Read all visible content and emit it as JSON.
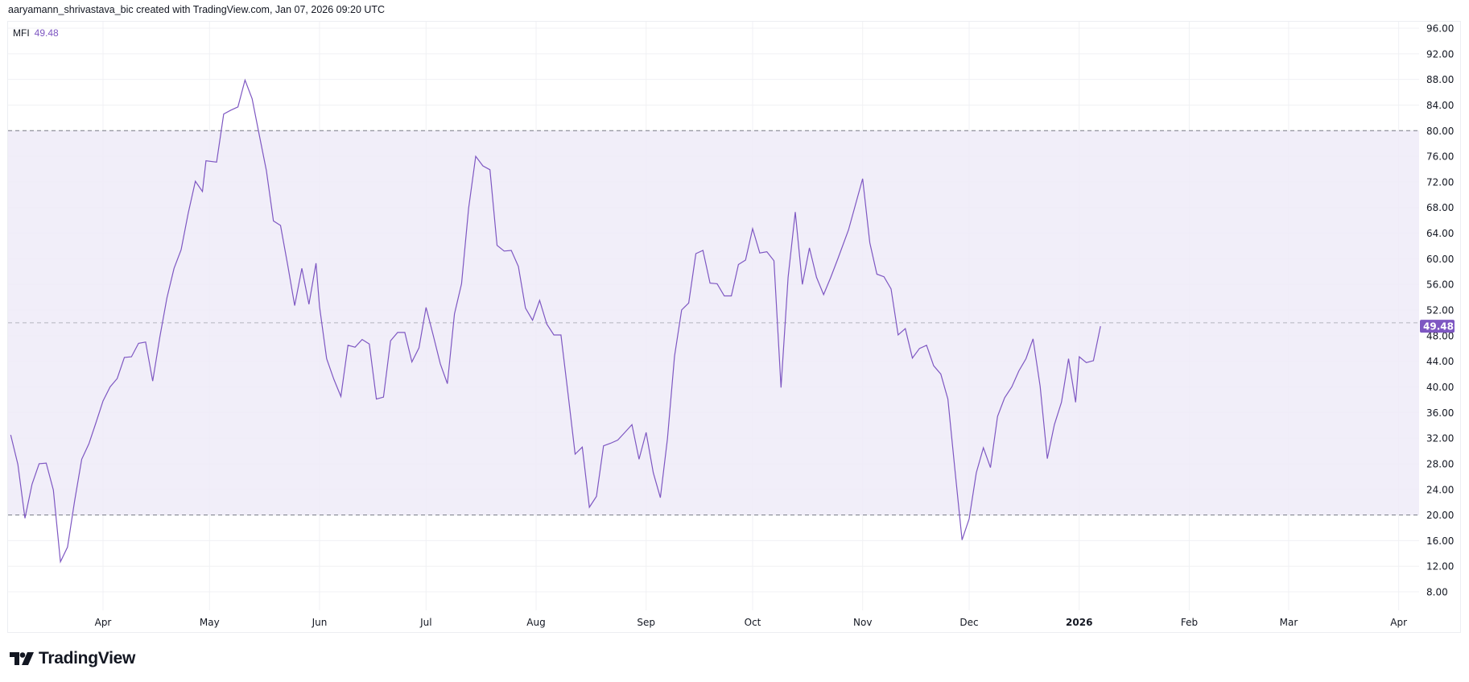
{
  "header": {
    "title": "aaryamann_shrivastava_bic created with TradingView.com, Jan 07, 2026 09:20 UTC"
  },
  "legend": {
    "name": "MFI",
    "value": "49.48"
  },
  "brand": {
    "name": "TradingView"
  },
  "colors": {
    "line": "#7E57C2",
    "band_fill": "#EFEBF8",
    "band_line": "#787B86",
    "grid": "#F0F1F4",
    "label_bg": "#7E57C2"
  },
  "chart_data": {
    "type": "line",
    "title": "",
    "xlabel": "",
    "ylabel": "",
    "ylim": [
      4,
      98
    ],
    "grid": true,
    "last_value_label": "49.48",
    "bands": {
      "upper": 80,
      "middle": 50,
      "lower": 20
    },
    "yticks": [
      "96.00",
      "92.00",
      "88.00",
      "84.00",
      "80.00",
      "76.00",
      "72.00",
      "68.00",
      "64.00",
      "60.00",
      "56.00",
      "52.00",
      "48.00",
      "44.00",
      "40.00",
      "36.00",
      "32.00",
      "28.00",
      "24.00",
      "20.00",
      "16.00",
      "12.00",
      "8.00"
    ],
    "xticks": [
      {
        "label": "Apr",
        "date": "2025-04-01"
      },
      {
        "label": "May",
        "date": "2025-05-01"
      },
      {
        "label": "Jun",
        "date": "2025-06-01"
      },
      {
        "label": "Jul",
        "date": "2025-07-01"
      },
      {
        "label": "Aug",
        "date": "2025-08-01"
      },
      {
        "label": "Sep",
        "date": "2025-09-01"
      },
      {
        "label": "Oct",
        "date": "2025-10-01"
      },
      {
        "label": "Nov",
        "date": "2025-11-01"
      },
      {
        "label": "Dec",
        "date": "2025-12-01"
      },
      {
        "label": "2026",
        "date": "2026-01-01",
        "bold": true
      },
      {
        "label": "Feb",
        "date": "2026-02-01"
      },
      {
        "label": "Mar",
        "date": "2026-03-01"
      },
      {
        "label": "Apr",
        "date": "2026-04-01"
      }
    ],
    "series": [
      {
        "points": [
          [
            "2025-03-06",
            32.5
          ],
          [
            "2025-03-08",
            27.9
          ],
          [
            "2025-03-10",
            19.5
          ],
          [
            "2025-03-12",
            24.8
          ],
          [
            "2025-03-14",
            28.0
          ],
          [
            "2025-03-16",
            28.1
          ],
          [
            "2025-03-18",
            23.9
          ],
          [
            "2025-03-20",
            12.7
          ],
          [
            "2025-03-22",
            15.0
          ],
          [
            "2025-03-24",
            22.2
          ],
          [
            "2025-03-26",
            28.7
          ],
          [
            "2025-03-28",
            31.1
          ],
          [
            "2025-03-30",
            34.4
          ],
          [
            "2025-04-01",
            37.8
          ],
          [
            "2025-04-03",
            40.0
          ],
          [
            "2025-04-05",
            41.3
          ],
          [
            "2025-04-07",
            44.6
          ],
          [
            "2025-04-09",
            44.7
          ],
          [
            "2025-04-11",
            46.8
          ],
          [
            "2025-04-13",
            47.0
          ],
          [
            "2025-04-15",
            40.9
          ],
          [
            "2025-04-17",
            47.8
          ],
          [
            "2025-04-19",
            53.9
          ],
          [
            "2025-04-21",
            58.5
          ],
          [
            "2025-04-23",
            61.4
          ],
          [
            "2025-04-25",
            67.1
          ],
          [
            "2025-04-27",
            72.1
          ],
          [
            "2025-04-29",
            70.5
          ],
          [
            "2025-04-30",
            75.3
          ],
          [
            "2025-05-03",
            75.1
          ],
          [
            "2025-05-05",
            82.6
          ],
          [
            "2025-05-07",
            83.2
          ],
          [
            "2025-05-09",
            83.7
          ],
          [
            "2025-05-11",
            87.9
          ],
          [
            "2025-05-13",
            85.0
          ],
          [
            "2025-05-15",
            79.4
          ],
          [
            "2025-05-17",
            73.8
          ],
          [
            "2025-05-19",
            65.9
          ],
          [
            "2025-05-21",
            65.2
          ],
          [
            "2025-05-23",
            59.1
          ],
          [
            "2025-05-25",
            52.7
          ],
          [
            "2025-05-27",
            58.5
          ],
          [
            "2025-05-29",
            52.9
          ],
          [
            "2025-05-31",
            59.3
          ],
          [
            "2025-06-01",
            52.5
          ],
          [
            "2025-06-03",
            44.4
          ],
          [
            "2025-06-05",
            41.2
          ],
          [
            "2025-06-07",
            38.5
          ],
          [
            "2025-06-09",
            46.5
          ],
          [
            "2025-06-11",
            46.2
          ],
          [
            "2025-06-13",
            47.4
          ],
          [
            "2025-06-15",
            46.7
          ],
          [
            "2025-06-17",
            38.1
          ],
          [
            "2025-06-19",
            38.4
          ],
          [
            "2025-06-21",
            47.2
          ],
          [
            "2025-06-23",
            48.5
          ],
          [
            "2025-06-25",
            48.5
          ],
          [
            "2025-06-27",
            43.9
          ],
          [
            "2025-06-29",
            46.1
          ],
          [
            "2025-07-01",
            52.4
          ],
          [
            "2025-07-03",
            48.1
          ],
          [
            "2025-07-05",
            43.6
          ],
          [
            "2025-07-07",
            40.5
          ],
          [
            "2025-07-09",
            51.4
          ],
          [
            "2025-07-11",
            56.1
          ],
          [
            "2025-07-13",
            67.9
          ],
          [
            "2025-07-15",
            76.0
          ],
          [
            "2025-07-17",
            74.5
          ],
          [
            "2025-07-19",
            73.9
          ],
          [
            "2025-07-21",
            62.1
          ],
          [
            "2025-07-23",
            61.2
          ],
          [
            "2025-07-25",
            61.3
          ],
          [
            "2025-07-27",
            58.8
          ],
          [
            "2025-07-29",
            52.3
          ],
          [
            "2025-07-31",
            50.4
          ],
          [
            "2025-08-02",
            53.5
          ],
          [
            "2025-08-04",
            49.8
          ],
          [
            "2025-08-06",
            48.1
          ],
          [
            "2025-08-08",
            48.1
          ],
          [
            "2025-08-10",
            38.9
          ],
          [
            "2025-08-12",
            29.5
          ],
          [
            "2025-08-14",
            30.6
          ],
          [
            "2025-08-16",
            21.2
          ],
          [
            "2025-08-18",
            22.9
          ],
          [
            "2025-08-20",
            30.8
          ],
          [
            "2025-08-22",
            31.2
          ],
          [
            "2025-08-24",
            31.7
          ],
          [
            "2025-08-26",
            32.9
          ],
          [
            "2025-08-28",
            34.1
          ],
          [
            "2025-08-30",
            28.7
          ],
          [
            "2025-09-01",
            32.9
          ],
          [
            "2025-09-03",
            26.6
          ],
          [
            "2025-09-05",
            22.7
          ],
          [
            "2025-09-07",
            31.9
          ],
          [
            "2025-09-09",
            44.8
          ],
          [
            "2025-09-11",
            52.0
          ],
          [
            "2025-09-13",
            53.1
          ],
          [
            "2025-09-15",
            60.8
          ],
          [
            "2025-09-17",
            61.3
          ],
          [
            "2025-09-19",
            56.2
          ],
          [
            "2025-09-21",
            56.1
          ],
          [
            "2025-09-23",
            54.2
          ],
          [
            "2025-09-25",
            54.2
          ],
          [
            "2025-09-27",
            59.1
          ],
          [
            "2025-09-29",
            59.8
          ],
          [
            "2025-10-01",
            64.7
          ],
          [
            "2025-10-03",
            60.9
          ],
          [
            "2025-10-05",
            61.1
          ],
          [
            "2025-10-07",
            59.7
          ],
          [
            "2025-10-09",
            39.9
          ],
          [
            "2025-10-11",
            57.1
          ],
          [
            "2025-10-13",
            67.3
          ],
          [
            "2025-10-15",
            56.0
          ],
          [
            "2025-10-17",
            61.7
          ],
          [
            "2025-10-19",
            57.1
          ],
          [
            "2025-10-21",
            54.4
          ],
          [
            "2025-10-23",
            57.1
          ],
          [
            "2025-10-25",
            60.0
          ],
          [
            "2025-10-28",
            64.5
          ],
          [
            "2025-11-01",
            72.5
          ],
          [
            "2025-11-03",
            62.5
          ],
          [
            "2025-11-05",
            57.6
          ],
          [
            "2025-11-07",
            57.2
          ],
          [
            "2025-11-09",
            55.3
          ],
          [
            "2025-11-11",
            48.1
          ],
          [
            "2025-11-13",
            49.1
          ],
          [
            "2025-11-15",
            44.5
          ],
          [
            "2025-11-17",
            46.0
          ],
          [
            "2025-11-19",
            46.5
          ],
          [
            "2025-11-21",
            43.3
          ],
          [
            "2025-11-23",
            42.0
          ],
          [
            "2025-11-25",
            38.1
          ],
          [
            "2025-11-27",
            27.0
          ],
          [
            "2025-11-29",
            16.1
          ],
          [
            "2025-12-01",
            19.4
          ],
          [
            "2025-12-03",
            26.6
          ],
          [
            "2025-12-05",
            30.5
          ],
          [
            "2025-12-07",
            27.4
          ],
          [
            "2025-12-09",
            35.4
          ],
          [
            "2025-12-11",
            38.3
          ],
          [
            "2025-12-13",
            40.0
          ],
          [
            "2025-12-15",
            42.5
          ],
          [
            "2025-12-17",
            44.4
          ],
          [
            "2025-12-19",
            47.5
          ],
          [
            "2025-12-21",
            40.1
          ],
          [
            "2025-12-23",
            28.8
          ],
          [
            "2025-12-25",
            34.1
          ],
          [
            "2025-12-27",
            37.6
          ],
          [
            "2025-12-29",
            44.4
          ],
          [
            "2025-12-31",
            37.6
          ],
          [
            "2026-01-01",
            44.7
          ],
          [
            "2026-01-03",
            43.8
          ],
          [
            "2026-01-05",
            44.1
          ],
          [
            "2026-01-07",
            49.48
          ]
        ]
      }
    ]
  }
}
